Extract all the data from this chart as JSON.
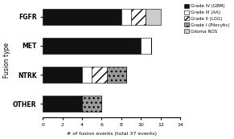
{
  "categories": [
    "OTHER",
    "NTRK",
    "MET",
    "FGFR"
  ],
  "segments": {
    "Grade IV (GBM)": [
      4,
      4,
      10,
      8
    ],
    "Grade III (AA)": [
      0,
      1,
      1,
      1
    ],
    "Grade II (LGG)": [
      0,
      1.5,
      0,
      1.5
    ],
    "Grade I (Pilocytic)": [
      2,
      2,
      0,
      0
    ],
    "Glioma NOS": [
      0,
      0,
      0,
      1.5
    ]
  },
  "hatches": {
    "Grade IV (GBM)": "",
    "Grade III (AA)": "",
    "Grade II (LGG)": "///",
    "Grade I (Pilocytic)": "...",
    "Glioma NOS": ""
  },
  "facecolors": {
    "Grade IV (GBM)": "#111111",
    "Grade III (AA)": "#ffffff",
    "Grade II (LGG)": "#ffffff",
    "Grade I (Pilocytic)": "#999999",
    "Glioma NOS": "#cccccc"
  },
  "xlabel": "# of fusion events (total 37 events)",
  "ylabel": "Fusion type",
  "xlim": [
    0,
    14
  ],
  "xticks": [
    0,
    2,
    4,
    6,
    8,
    10,
    12,
    14
  ],
  "bar_height": 0.55,
  "legend_order": [
    "Grade IV (GBM)",
    "Grade III (AA)",
    "Grade II (LGG)",
    "Grade I (Pilocytic)",
    "Glioma NOS"
  ]
}
